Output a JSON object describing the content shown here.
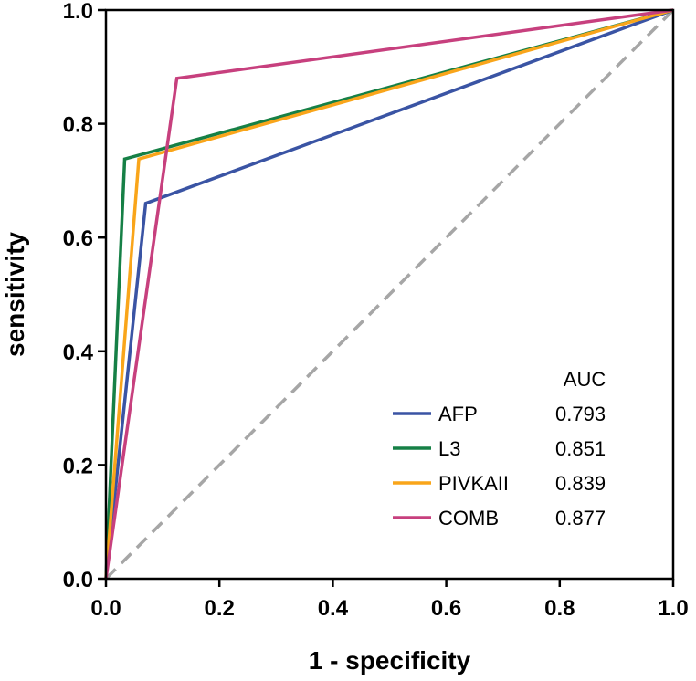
{
  "chart_data": {
    "type": "line",
    "title": "",
    "xlabel": "1 - specificity",
    "ylabel": "sensitivity",
    "xlim": [
      0,
      1
    ],
    "ylim": [
      0,
      1
    ],
    "x_ticks": [
      "0.0",
      "0.2",
      "0.4",
      "0.6",
      "0.8",
      "1.0"
    ],
    "y_ticks": [
      "0.0",
      "0.2",
      "0.4",
      "0.6",
      "0.8",
      "1.0"
    ],
    "grid": false,
    "legend_position": "bottom-right",
    "legend_header": "AUC",
    "reference_line": {
      "name": "chance",
      "x": [
        0,
        1
      ],
      "y": [
        0,
        1
      ],
      "style": "dashed",
      "color": "#A6A6A6"
    },
    "series": [
      {
        "name": "AFP",
        "auc": "0.793",
        "color": "#3A54A4",
        "x": [
          0,
          0.07,
          1
        ],
        "y": [
          0,
          0.66,
          1
        ]
      },
      {
        "name": "L3",
        "auc": "0.851",
        "color": "#168046",
        "x": [
          0,
          0.033,
          1
        ],
        "y": [
          0,
          0.738,
          1
        ]
      },
      {
        "name": "PIVKAII",
        "auc": "0.839",
        "color": "#F9A51A",
        "x": [
          0,
          0.058,
          1
        ],
        "y": [
          0,
          0.738,
          1
        ]
      },
      {
        "name": "COMB",
        "auc": "0.877",
        "color": "#C7407E",
        "x": [
          0,
          0.125,
          1
        ],
        "y": [
          0,
          0.88,
          1
        ]
      }
    ]
  }
}
